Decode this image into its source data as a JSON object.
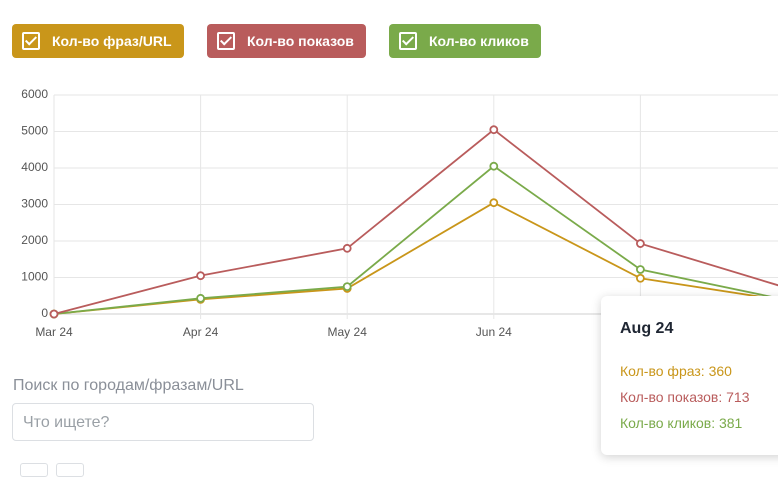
{
  "chart_data": {
    "type": "line",
    "legend": [
      "Кол-во фраз/URL",
      "Кол-во показов",
      "Кол-во кликов"
    ],
    "categories": [
      "Mar 24",
      "Apr 24",
      "May 24",
      "Jun 24",
      null,
      "Aug 24"
    ],
    "series": [
      {
        "name": "Кол-во фраз/URL",
        "color": "#c9961a",
        "values": [
          0,
          400,
          700,
          3050,
          980,
          360
        ]
      },
      {
        "name": "Кол-во показов",
        "color": "#b95c5c",
        "values": [
          0,
          1050,
          1800,
          5050,
          1930,
          713
        ]
      },
      {
        "name": "Кол-во кликов",
        "color": "#7aaa4a",
        "values": [
          0,
          430,
          750,
          4050,
          1220,
          381
        ]
      }
    ],
    "ylim": [
      0,
      6000
    ],
    "yticks": [
      0,
      1000,
      2000,
      3000,
      4000,
      5000,
      6000
    ],
    "grid": true,
    "tooltip": {
      "labels": [
        "Кол-во фраз:",
        "Кол-во показов:",
        "Кол-во кликов:"
      ]
    }
  },
  "search": {
    "label": "Поиск по городам/фразам/URL",
    "placeholder": "Что ищете?"
  }
}
